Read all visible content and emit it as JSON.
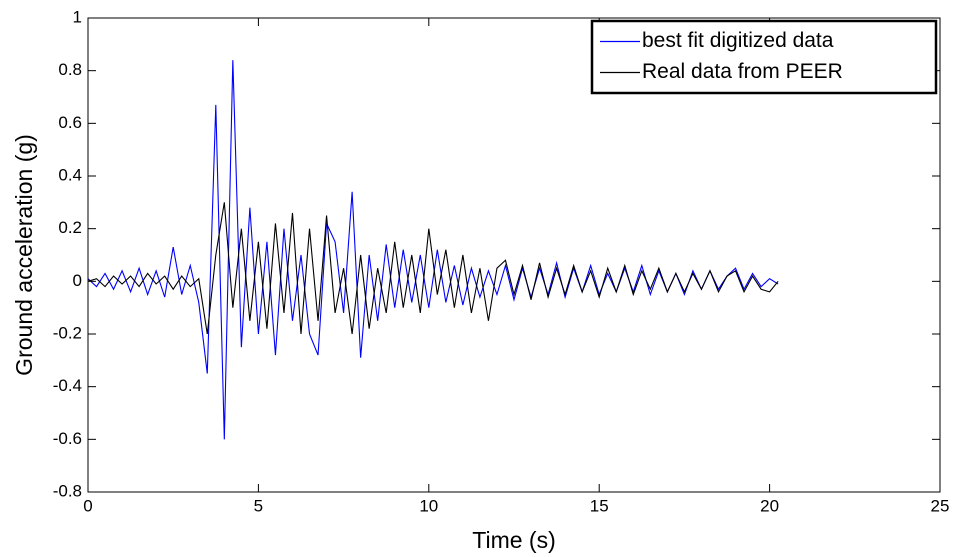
{
  "chart_data": {
    "type": "line",
    "xlabel": "Time (s)",
    "ylabel": "Ground acceleration (g)",
    "x": [
      0,
      0.25,
      0.5,
      0.75,
      1,
      1.25,
      1.5,
      1.75,
      2,
      2.25,
      2.5,
      2.75,
      3,
      3.25,
      3.5,
      3.75,
      4,
      4.25,
      4.5,
      4.75,
      5,
      5.25,
      5.5,
      5.75,
      6,
      6.25,
      6.5,
      6.75,
      7,
      7.25,
      7.5,
      7.75,
      8,
      8.25,
      8.5,
      8.75,
      9,
      9.25,
      9.5,
      9.75,
      10,
      10.25,
      10.5,
      10.75,
      11,
      11.25,
      11.5,
      11.75,
      12,
      12.25,
      12.5,
      12.75,
      13,
      13.25,
      13.5,
      13.75,
      14,
      14.25,
      14.5,
      14.75,
      15,
      15.25,
      15.5,
      15.75,
      16,
      16.25,
      16.5,
      16.75,
      17,
      17.25,
      17.5,
      17.75,
      18,
      18.25,
      18.5,
      18.75,
      19,
      19.25,
      19.5,
      19.75,
      20,
      20.25
    ],
    "series": [
      {
        "name": "best fit digitized data",
        "color": "#0000ff",
        "values": [
          0.01,
          -0.02,
          0.03,
          -0.03,
          0.04,
          -0.04,
          0.05,
          -0.05,
          0.04,
          -0.06,
          0.13,
          -0.05,
          0.06,
          -0.08,
          -0.35,
          0.67,
          -0.6,
          0.84,
          -0.25,
          0.28,
          -0.2,
          0.15,
          -0.28,
          0.2,
          -0.15,
          0.1,
          -0.2,
          -0.28,
          0.22,
          0.15,
          -0.12,
          0.34,
          -0.29,
          0.1,
          -0.15,
          0.14,
          -0.1,
          0.12,
          -0.08,
          0.1,
          -0.1,
          0.12,
          -0.08,
          0.06,
          -0.09,
          0.05,
          -0.06,
          0.04,
          -0.05,
          0.06,
          -0.07,
          0.05,
          -0.06,
          0.05,
          -0.05,
          0.07,
          -0.06,
          0.05,
          -0.04,
          0.06,
          -0.05,
          0.03,
          -0.04,
          0.05,
          -0.04,
          0.06,
          -0.05,
          0.04,
          -0.04,
          0.03,
          -0.05,
          0.04,
          -0.03,
          0.04,
          -0.03,
          0.02,
          0.05,
          -0.03,
          0.03,
          -0.02,
          0.01,
          -0.01
        ]
      },
      {
        "name": "Real data from PEER",
        "color": "#000000",
        "values": [
          0,
          0.01,
          -0.02,
          0.02,
          -0.01,
          0.02,
          -0.02,
          0.03,
          -0.01,
          0.02,
          -0.03,
          0.02,
          -0.02,
          0.01,
          -0.2,
          0.1,
          0.3,
          -0.1,
          0.2,
          -0.15,
          0.15,
          -0.18,
          0.22,
          -0.12,
          0.26,
          -0.2,
          0.2,
          -0.15,
          0.25,
          -0.12,
          0.05,
          -0.2,
          0.1,
          -0.18,
          0.05,
          -0.12,
          0.15,
          -0.1,
          0.1,
          -0.12,
          0.2,
          -0.05,
          0.12,
          -0.1,
          0.1,
          -0.12,
          0.05,
          -0.15,
          0.05,
          0.08,
          -0.05,
          0.06,
          -0.07,
          0.07,
          -0.06,
          0.05,
          -0.05,
          0.06,
          -0.04,
          0.04,
          -0.06,
          0.05,
          -0.04,
          0.06,
          -0.05,
          0.04,
          -0.03,
          0.05,
          -0.04,
          0.03,
          -0.04,
          0.03,
          -0.03,
          0.04,
          -0.04,
          0.02,
          0.04,
          -0.04,
          0.02,
          -0.03,
          -0.04,
          0
        ]
      }
    ],
    "xlim": [
      0,
      25
    ],
    "xticks": [
      0,
      5,
      10,
      15,
      20,
      25
    ],
    "ylim": [
      -0.8,
      1
    ],
    "yticks": [
      -0.8,
      -0.6,
      -0.4,
      -0.2,
      0,
      0.2,
      0.4,
      0.6,
      0.8,
      1
    ],
    "grid": false,
    "legend": "northeast"
  }
}
